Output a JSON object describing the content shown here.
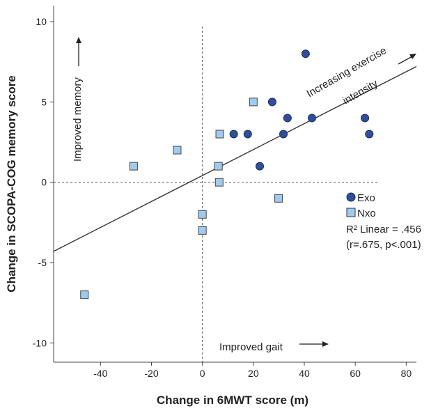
{
  "chart_data": {
    "type": "scatter",
    "title": "",
    "xlabel": "Change in 6MWT score (m)",
    "ylabel": "Change in SCOPA-COG memory score",
    "xlim": [
      -58.4,
      84
    ],
    "ylim": [
      -11.2,
      11.0
    ],
    "xticks": [
      -40,
      -20,
      0,
      20,
      40,
      60,
      80
    ],
    "yticks": [
      -10,
      -5,
      0,
      5,
      10
    ],
    "grid": false,
    "series": [
      {
        "name": "Exo",
        "marker": "circle",
        "color": "#2e4f9e",
        "points": [
          [
            40.5,
            8
          ],
          [
            27.4,
            5
          ],
          [
            33.4,
            4
          ],
          [
            43,
            4
          ],
          [
            63.8,
            4
          ],
          [
            12.3,
            3
          ],
          [
            17.8,
            3
          ],
          [
            31.8,
            3
          ],
          [
            65.5,
            3
          ],
          [
            22.5,
            1
          ]
        ]
      },
      {
        "name": "Nxo",
        "marker": "square",
        "color": "#9fcbf0",
        "points": [
          [
            20,
            5
          ],
          [
            6.8,
            3
          ],
          [
            -9.9,
            2
          ],
          [
            -27,
            1
          ],
          [
            6.3,
            1
          ],
          [
            6.6,
            0
          ],
          [
            0,
            -2
          ],
          [
            0,
            -3
          ],
          [
            29.9,
            -1
          ],
          [
            -46.3,
            -7
          ]
        ]
      }
    ],
    "fit": {
      "label": "R² Linear = .456",
      "stats": "(r=.675, p<.001)",
      "slope": 0.0808,
      "intercept": 0.42,
      "x_range": [
        -58.4,
        84
      ]
    },
    "reference_lines": {
      "x": 0,
      "y": 0
    },
    "legend": {
      "placement": "right-middle"
    },
    "annotations": {
      "memory": "Improved memory",
      "gait": "Improved gait",
      "intensity_line1": "Increasing exercise",
      "intensity_line2": "intensity"
    }
  }
}
